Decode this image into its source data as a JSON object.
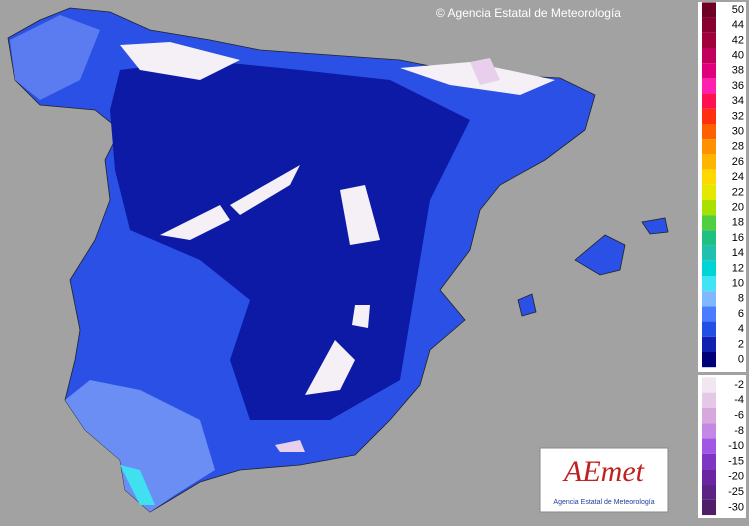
{
  "copyright": "© Agencia Estatal de Meteorología",
  "legend": {
    "upper": [
      {
        "label": 50,
        "color": "#6e0026"
      },
      {
        "label": 44,
        "color": "#880030"
      },
      {
        "label": 42,
        "color": "#a0003c"
      },
      {
        "label": 40,
        "color": "#c0005a"
      },
      {
        "label": 38,
        "color": "#e0007e"
      },
      {
        "label": 36,
        "color": "#ff20b0"
      },
      {
        "label": 34,
        "color": "#ff1050"
      },
      {
        "label": 32,
        "color": "#ff3010"
      },
      {
        "label": 30,
        "color": "#ff6000"
      },
      {
        "label": 28,
        "color": "#ff9000"
      },
      {
        "label": 26,
        "color": "#ffb400"
      },
      {
        "label": 24,
        "color": "#ffd800"
      },
      {
        "label": 22,
        "color": "#e4e800"
      },
      {
        "label": 20,
        "color": "#a8e000"
      },
      {
        "label": 18,
        "color": "#50d040"
      },
      {
        "label": 16,
        "color": "#20c080"
      },
      {
        "label": 14,
        "color": "#20c0b0"
      },
      {
        "label": 12,
        "color": "#00d4d4"
      },
      {
        "label": 10,
        "color": "#40e4f4"
      },
      {
        "label": 8,
        "color": "#80b8ff"
      },
      {
        "label": 6,
        "color": "#4a7cff"
      },
      {
        "label": 4,
        "color": "#2250e4"
      },
      {
        "label": 2,
        "color": "#1020b0"
      },
      {
        "label": 0,
        "color": "#00007a"
      }
    ],
    "lower": [
      {
        "label": -2,
        "color": "#f2e6f2"
      },
      {
        "label": -4,
        "color": "#e4c8e6"
      },
      {
        "label": -6,
        "color": "#d6a8dc"
      },
      {
        "label": -8,
        "color": "#c488e4"
      },
      {
        "label": -10,
        "color": "#a058e4"
      },
      {
        "label": -15,
        "color": "#8034c4"
      },
      {
        "label": -20,
        "color": "#6c24a4"
      },
      {
        "label": -25,
        "color": "#5c2284"
      },
      {
        "label": -30,
        "color": "#4e1e66"
      }
    ]
  },
  "logo": {
    "mark": "AEmet",
    "caption": "Agencia Estatal de Meteorología"
  }
}
